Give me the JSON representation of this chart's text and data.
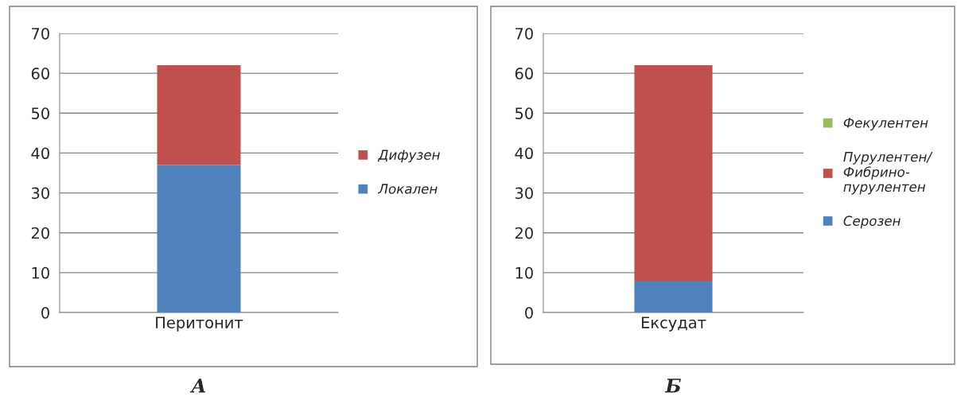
{
  "chart_data": [
    {
      "type": "bar",
      "title": "А",
      "categories": [
        "Перитонит"
      ],
      "stacked": true,
      "ylim": [
        0,
        70
      ],
      "yticks": [
        0,
        10,
        20,
        30,
        40,
        50,
        60,
        70
      ],
      "grid": "y",
      "legend": "right",
      "series": [
        {
          "name": "Локален",
          "color": "#4f81bd",
          "values": [
            37
          ]
        },
        {
          "name": "Дифузен",
          "color": "#c0504d",
          "values": [
            25
          ]
        }
      ]
    },
    {
      "type": "bar",
      "title": "Б",
      "categories": [
        "Ексудат"
      ],
      "stacked": true,
      "ylim": [
        0,
        70
      ],
      "yticks": [
        0,
        10,
        20,
        30,
        40,
        50,
        60,
        70
      ],
      "grid": "y",
      "legend": "right",
      "series": [
        {
          "name": "Серозен",
          "color": "#4f81bd",
          "values": [
            8
          ]
        },
        {
          "name": "Пурулентен/\nФибрино-\nпурулентен",
          "color": "#c0504d",
          "values": [
            54
          ]
        },
        {
          "name": "Фекулентен",
          "color": "#9bbb59",
          "values": [
            0
          ]
        }
      ]
    }
  ]
}
